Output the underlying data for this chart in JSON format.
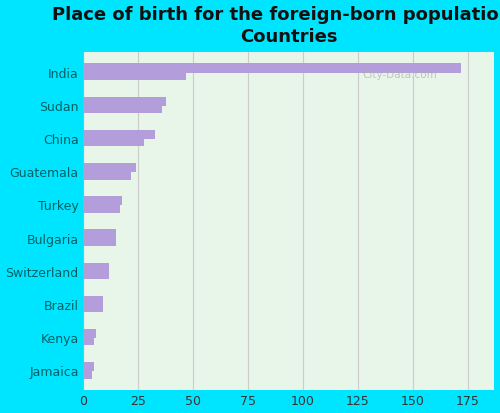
{
  "title": "Place of birth for the foreign-born population -\nCountries",
  "categories": [
    "India",
    "Sudan",
    "China",
    "Guatemala",
    "Turkey",
    "Bulgaria",
    "Switzerland",
    "Brazil",
    "Kenya",
    "Jamaica"
  ],
  "bar1_values": [
    172,
    38,
    33,
    24,
    18,
    15,
    12,
    9,
    6,
    5
  ],
  "bar2_values": [
    47,
    36,
    28,
    22,
    17,
    15,
    12,
    9,
    5,
    4
  ],
  "bar_color": "#b39ddb",
  "bg_outer": "#00e5ff",
  "bg_inner": "#e8f5e9",
  "xlim": [
    0,
    187
  ],
  "xticks": [
    0,
    25,
    50,
    75,
    100,
    125,
    150,
    175
  ],
  "title_fontsize": 13,
  "label_fontsize": 9,
  "tick_fontsize": 9,
  "bar_height": 0.28,
  "label_color": "#006064",
  "watermark": "City-Data.com"
}
